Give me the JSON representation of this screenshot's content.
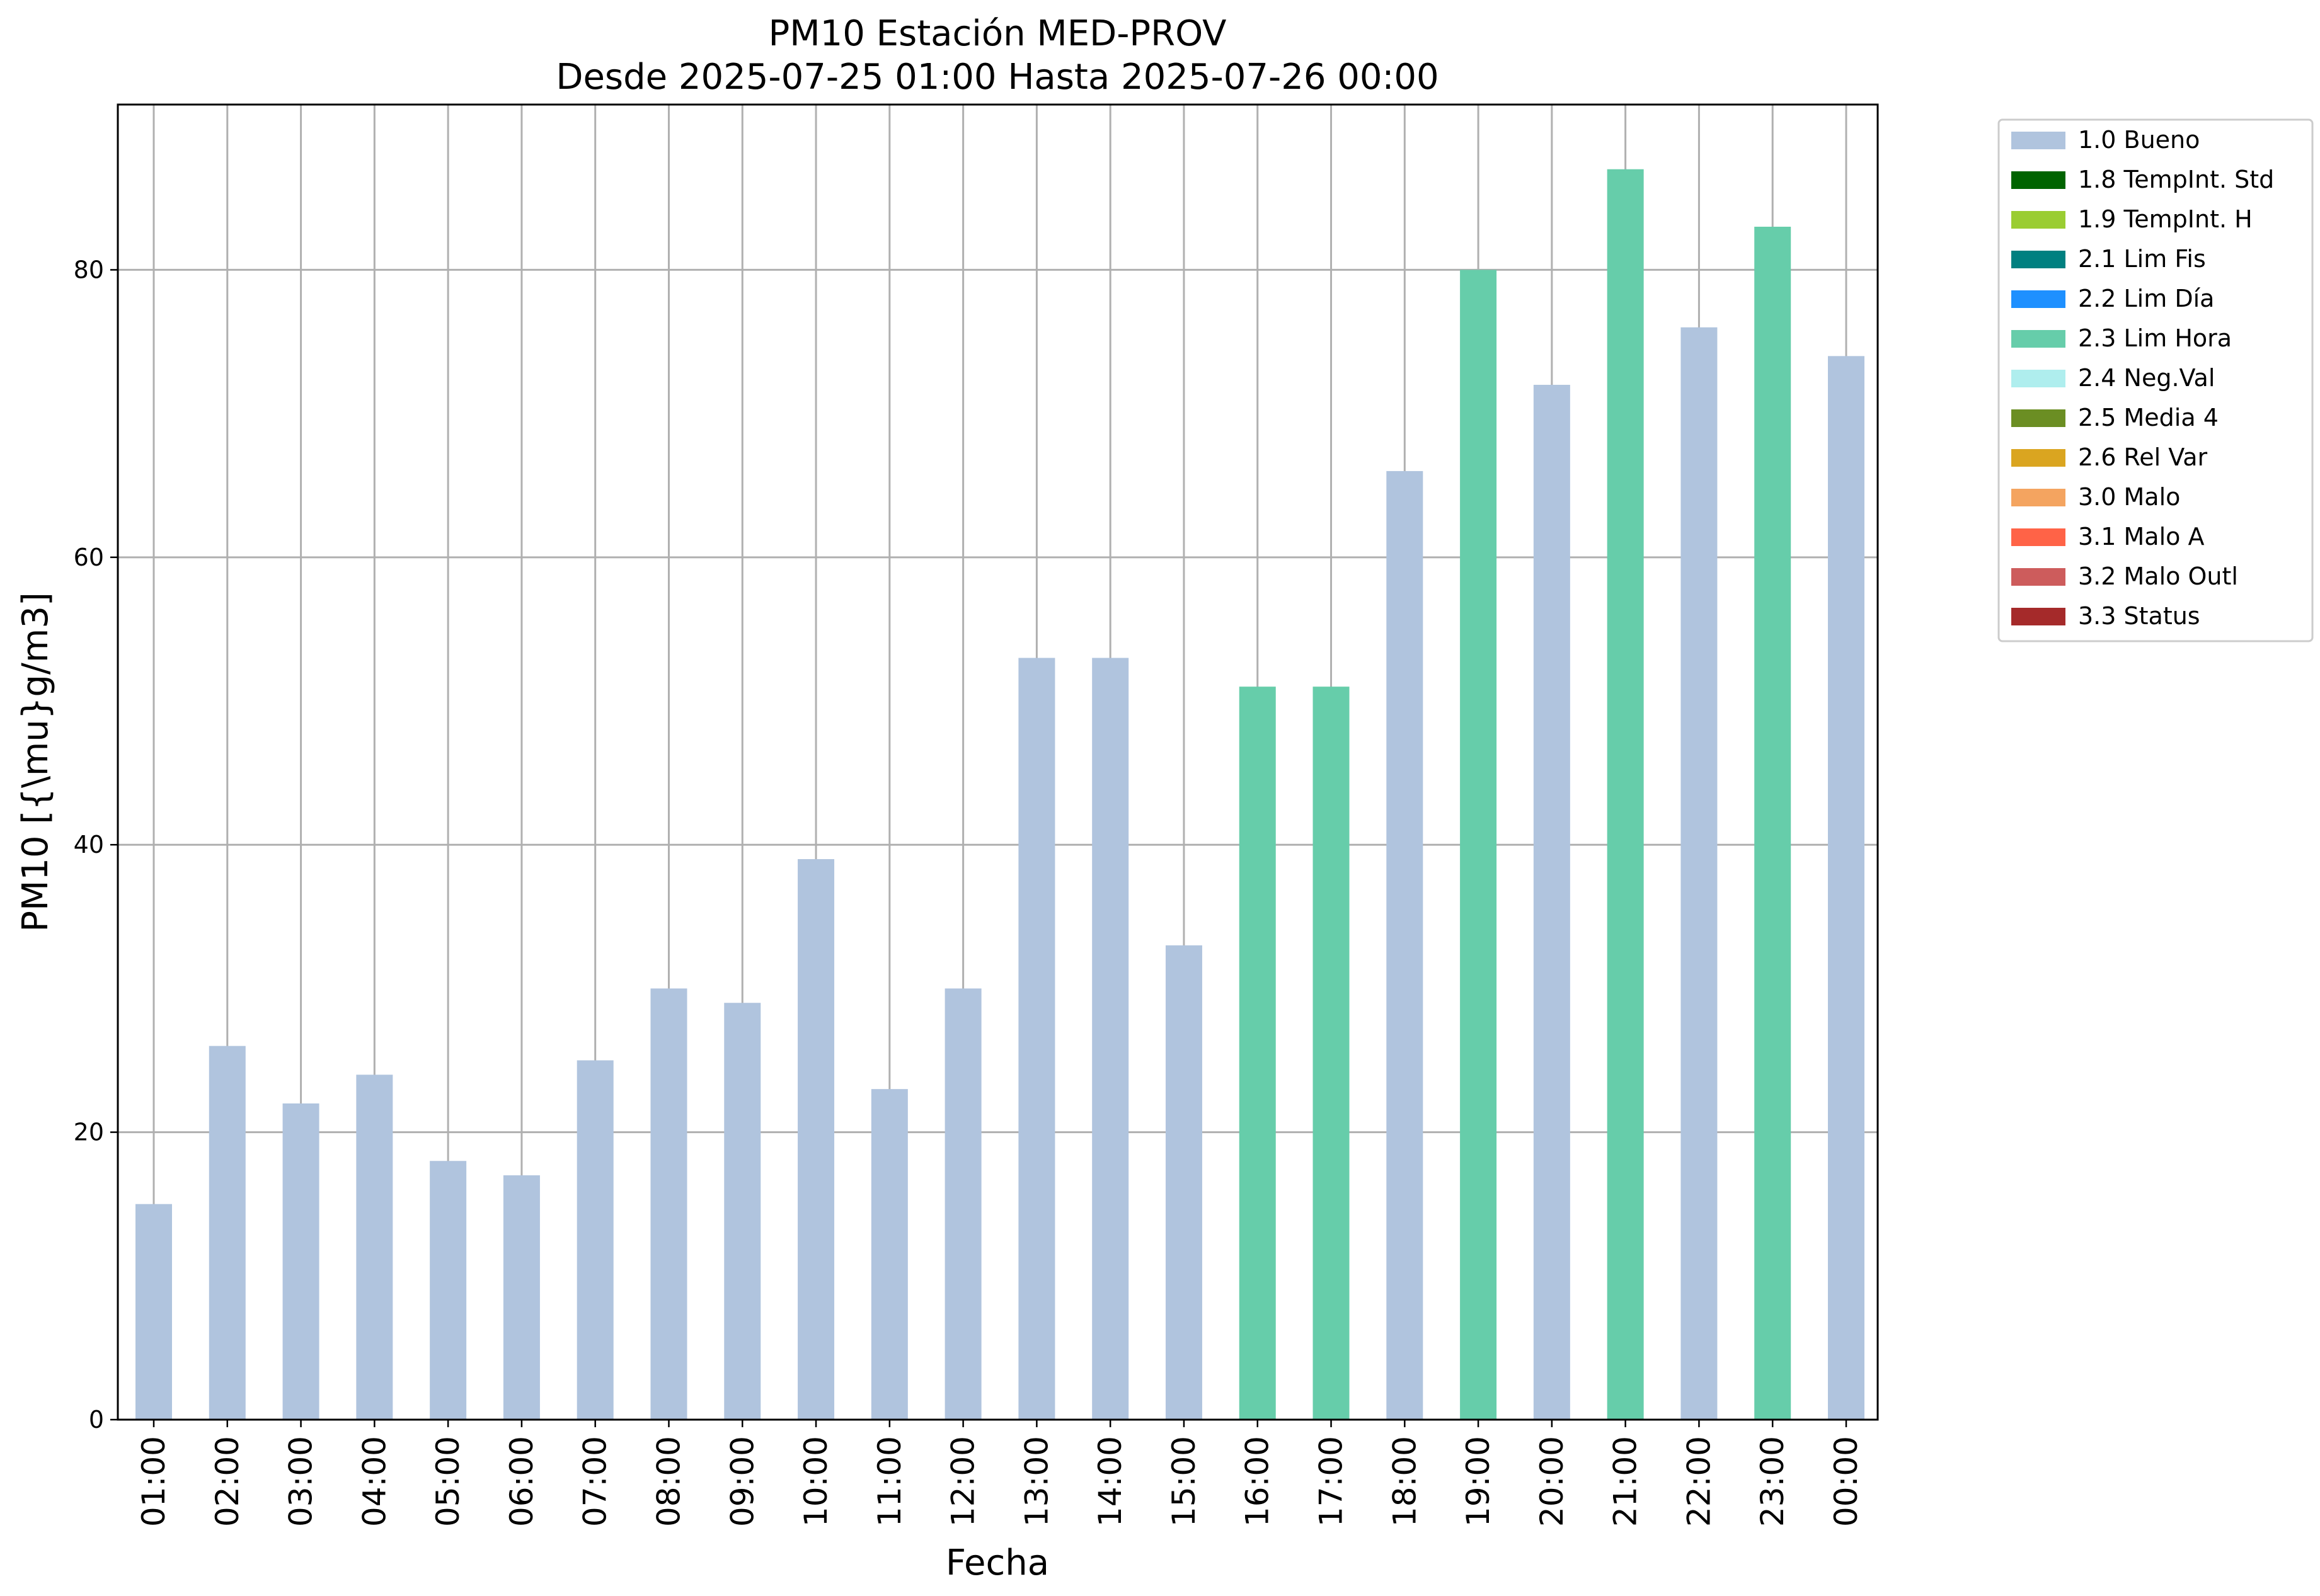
{
  "chart_data": {
    "type": "bar",
    "title": "PM10 Estación MED-PROV",
    "subtitle": "Desde 2025-07-25 01:00 Hasta 2025-07-26 00:00",
    "xlabel": "Fecha",
    "ylabel": "PM10 [{\\mu}g/m3]",
    "ylim": [
      0,
      91.5
    ],
    "yticks": [
      0,
      20,
      40,
      60,
      80
    ],
    "grid": true,
    "legend_position": "outside-top-right",
    "categories": [
      "01:00",
      "02:00",
      "03:00",
      "04:00",
      "05:00",
      "06:00",
      "07:00",
      "08:00",
      "09:00",
      "10:00",
      "11:00",
      "12:00",
      "13:00",
      "14:00",
      "15:00",
      "16:00",
      "17:00",
      "18:00",
      "19:00",
      "20:00",
      "21:00",
      "22:00",
      "23:00",
      "00:00"
    ],
    "values": [
      15,
      26,
      22,
      24,
      18,
      17,
      25,
      30,
      29,
      39,
      23,
      30,
      53,
      53,
      33,
      51,
      51,
      66,
      80,
      72,
      87,
      76,
      83,
      74
    ],
    "flags": [
      "1.0 Bueno",
      "1.0 Bueno",
      "1.0 Bueno",
      "1.0 Bueno",
      "1.0 Bueno",
      "1.0 Bueno",
      "1.0 Bueno",
      "1.0 Bueno",
      "1.0 Bueno",
      "1.0 Bueno",
      "1.0 Bueno",
      "1.0 Bueno",
      "1.0 Bueno",
      "1.0 Bueno",
      "1.0 Bueno",
      "2.3 Lim Hora",
      "2.3 Lim Hora",
      "1.0 Bueno",
      "2.3 Lim Hora",
      "1.0 Bueno",
      "2.3 Lim Hora",
      "1.0 Bueno",
      "2.3 Lim Hora",
      "1.0 Bueno"
    ],
    "legend": [
      {
        "name": "1.0 Bueno",
        "color": "#b0c4de"
      },
      {
        "name": "1.8 TempInt. Std",
        "color": "#006400"
      },
      {
        "name": "1.9 TempInt. H",
        "color": "#9acd32"
      },
      {
        "name": "2.1 Lim Fis",
        "color": "#008080"
      },
      {
        "name": "2.2 Lim Día",
        "color": "#1e90ff"
      },
      {
        "name": "2.3 Lim Hora",
        "color": "#66cdaa"
      },
      {
        "name": "2.4 Neg.Val",
        "color": "#afeeee"
      },
      {
        "name": "2.5 Media 4",
        "color": "#6b8e23"
      },
      {
        "name": "2.6 Rel Var",
        "color": "#daa520"
      },
      {
        "name": "3.0 Malo",
        "color": "#f4a460"
      },
      {
        "name": "3.1 Malo A",
        "color": "#ff6347"
      },
      {
        "name": "3.2 Malo Outl",
        "color": "#cd5c5c"
      },
      {
        "name": "3.3 Status",
        "color": "#a52a2a"
      }
    ]
  }
}
